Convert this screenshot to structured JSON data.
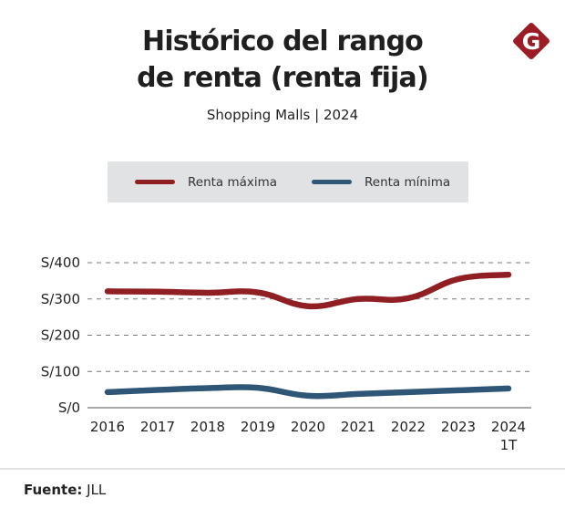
{
  "header": {
    "title_line1": "Histórico del rango",
    "title_line2": "de renta (renta fija)",
    "subtitle": "Shopping Malls | 2024",
    "logo_letter": "G",
    "logo_color": "#9b1c24"
  },
  "legend": {
    "background": "#e1e2e4",
    "items": [
      {
        "label": "Renta máxima",
        "color": "#8f1f22"
      },
      {
        "label": "Renta mínima",
        "color": "#2f5677"
      }
    ]
  },
  "footer": {
    "source_label": "Fuente:",
    "source_value": "JLL"
  },
  "chart_data": {
    "type": "line",
    "title": "Histórico del rango de renta (renta fija)",
    "subtitle": "Shopping Malls | 2024",
    "xlabel": "",
    "ylabel": "",
    "categories": [
      "2016",
      "2017",
      "2018",
      "2019",
      "2020",
      "2021",
      "2022",
      "2023",
      "2024"
    ],
    "category_sublabels": [
      "",
      "",
      "",
      "",
      "",
      "",
      "",
      "",
      "1T"
    ],
    "yticks": [
      0,
      100,
      200,
      300,
      400
    ],
    "ytick_labels": [
      "S/0",
      "S/100",
      "S/200",
      "S/300",
      "S/400"
    ],
    "ylim": [
      0,
      400
    ],
    "grid": true,
    "legend_position": "top",
    "series": [
      {
        "name": "Renta máxima",
        "color": "#8f1f22",
        "values": [
          321,
          320,
          317,
          318,
          280,
          300,
          302,
          355,
          367
        ]
      },
      {
        "name": "Renta mínima",
        "color": "#2f5677",
        "values": [
          43,
          49,
          54,
          55,
          33,
          38,
          43,
          48,
          53
        ]
      }
    ],
    "source": "Fuente: JLL"
  }
}
